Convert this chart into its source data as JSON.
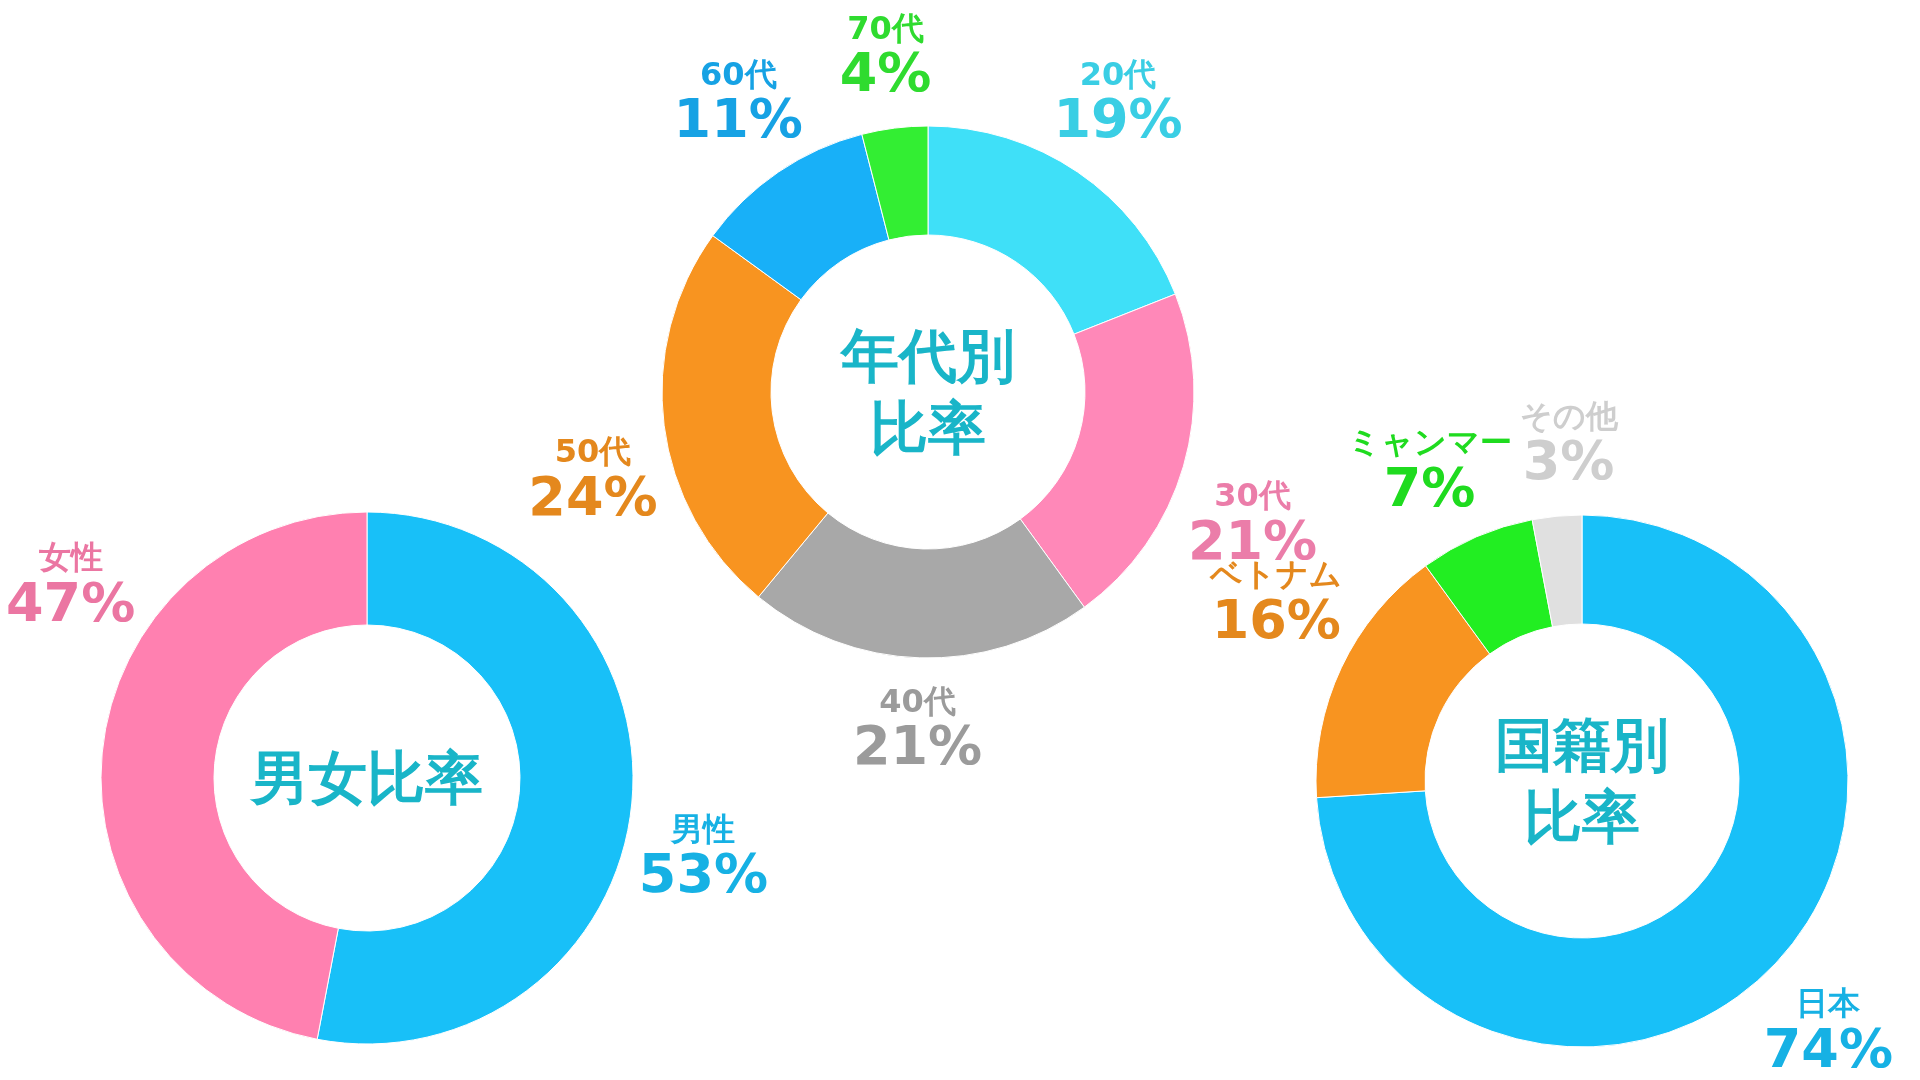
{
  "chart_data": [
    {
      "type": "donut",
      "title": "年代別比率",
      "categories": [
        "20代",
        "30代",
        "40代",
        "50代",
        "60代",
        "70代"
      ],
      "values": [
        19,
        21,
        21,
        24,
        11,
        4
      ],
      "value_labels": [
        "19%",
        "21%",
        "21%",
        "24%",
        "11%",
        "4%"
      ],
      "colors": [
        "#3fe0f8",
        "#ff88b8",
        "#a8a8a8",
        "#f89420",
        "#18b0f8",
        "#33ee33"
      ]
    },
    {
      "type": "donut",
      "title": "男女比率",
      "categories": [
        "男性",
        "女性"
      ],
      "values": [
        53,
        47
      ],
      "value_labels": [
        "53%",
        "47%"
      ],
      "colors": [
        "#18c0f8",
        "#ff80b0"
      ]
    },
    {
      "type": "donut",
      "title": "国籍別比率",
      "categories": [
        "日本",
        "ベトナム",
        "ミャンマー",
        "その他"
      ],
      "values": [
        74,
        16,
        7,
        3
      ],
      "value_labels": [
        "74%",
        "16%",
        "7%",
        "3%"
      ],
      "colors": [
        "#18c0f8",
        "#f89420",
        "#22ee22",
        "#e0e0e0"
      ]
    }
  ]
}
